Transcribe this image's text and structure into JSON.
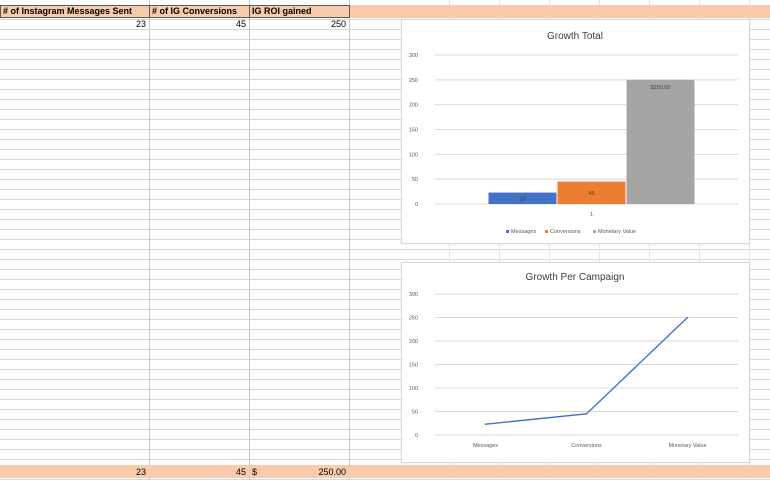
{
  "sheet": {
    "headers": [
      "# of Instagram Messages Sent",
      "# of IG Conversions",
      "IG ROI gained"
    ],
    "row1": [
      "23",
      "45",
      "250"
    ],
    "totals": {
      "messages": "23",
      "conversions": "45",
      "roi_symbol": "$",
      "roi_value": "250.00"
    }
  },
  "chart_data": [
    {
      "type": "bar",
      "title": "Growth Total",
      "categories": [
        "1"
      ],
      "series": [
        {
          "name": "Messages",
          "values": [
            23
          ],
          "color": "#4472c4",
          "label": "23"
        },
        {
          "name": "Conversions",
          "values": [
            45
          ],
          "color": "#ed7d31",
          "label": "45"
        },
        {
          "name": "Monetary Value",
          "values": [
            250
          ],
          "color": "#a5a5a5",
          "label": "$250.00"
        }
      ],
      "ylim": [
        0,
        300
      ],
      "yticks": [
        0,
        50,
        100,
        150,
        200,
        250,
        300
      ],
      "grid": true,
      "legend": "bottom"
    },
    {
      "type": "line",
      "title": "Growth Per Campaign",
      "categories": [
        "Messages",
        "Conversions",
        "Monetary Value"
      ],
      "series": [
        {
          "values": [
            23,
            45,
            250
          ],
          "color": "#4472c4"
        }
      ],
      "ylim": [
        0,
        300
      ],
      "yticks": [
        0,
        50,
        100,
        150,
        200,
        250,
        300
      ],
      "grid": true
    }
  ]
}
